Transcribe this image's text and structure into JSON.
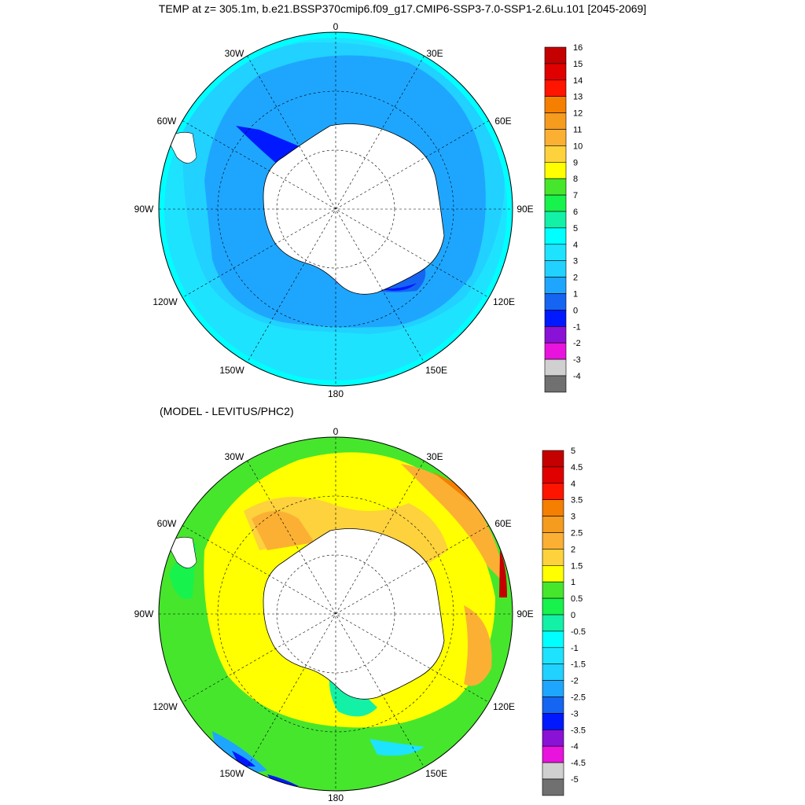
{
  "title": "TEMP at z= 305.1m, b.e21.BSSP370cmip6.f09_g17.CMIP6-SSP3-7.0-SSP1-2.6Lu.101 [2045-2069]",
  "subtitle": "(MODEL - LEVITUS/PHC2)",
  "longitude_labels": {
    "lon_0": "0",
    "lon_30e": "30E",
    "lon_60e": "60E",
    "lon_90e": "90E",
    "lon_120e": "120E",
    "lon_150e": "150E",
    "lon_180": "180",
    "lon_150w": "150W",
    "lon_120w": "120W",
    "lon_90w": "90W",
    "lon_60w": "60W",
    "lon_30w": "30W"
  },
  "colorbar_top": {
    "levels": [
      "16",
      "15",
      "14",
      "13",
      "12",
      "11",
      "10",
      "9",
      "8",
      "7",
      "6",
      "5",
      "4",
      "3",
      "2",
      "1",
      "0",
      "-1",
      "-2",
      "-3",
      "-4"
    ],
    "colors": [
      "#c40000",
      "#e00000",
      "#ff1400",
      "#f57f00",
      "#f59b1e",
      "#fbb034",
      "#fdd23c",
      "#ffff00",
      "#46e62d",
      "#18f24c",
      "#13f1a7",
      "#00ffff",
      "#1ee3ff",
      "#21d1ff",
      "#1ea6ff",
      "#1565f2",
      "#0019ff",
      "#8a12d6",
      "#e913de",
      "#d0d0d0",
      "#707070"
    ]
  },
  "colorbar_bottom": {
    "levels": [
      "5",
      "4.5",
      "4",
      "3.5",
      "3",
      "2.5",
      "2",
      "1.5",
      "1",
      "0.5",
      "0",
      "-0.5",
      "-1",
      "-1.5",
      "-2",
      "-2.5",
      "-3",
      "-3.5",
      "-4",
      "-4.5",
      "-5"
    ],
    "colors": [
      "#c40000",
      "#e00000",
      "#ff1400",
      "#f57f00",
      "#f59b1e",
      "#fbb034",
      "#fdd23c",
      "#ffff00",
      "#46e62d",
      "#18f24c",
      "#13f1a7",
      "#00ffff",
      "#1ee3ff",
      "#21d1ff",
      "#1ea6ff",
      "#1565f2",
      "#0019ff",
      "#8a12d6",
      "#e913de",
      "#d0d0d0",
      "#707070"
    ]
  }
}
